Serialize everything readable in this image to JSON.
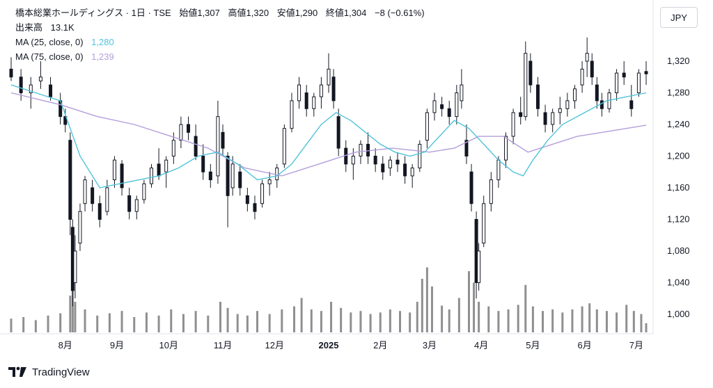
{
  "legend": {
    "symbol_line": "橋本総業ホールディングス · 1日 · TSE",
    "open": "始値1,307",
    "high": "高値1,320",
    "low": "安値1,290",
    "close": "終値1,304",
    "change": "−8 (−0.61%)",
    "volume_label": "出来高",
    "volume_value": "13.1K",
    "ma25_label": "MA (25, close, 0)",
    "ma25_value": "1,280",
    "ma75_label": "MA (75, close, 0)",
    "ma75_value": "1,239"
  },
  "currency": "JPY",
  "brand": "TradingView",
  "colors": {
    "candle": "#131722",
    "volume": "#8f8f8f",
    "ma25": "#4fc3d9",
    "ma75": "#b39ddb",
    "axis_text": "#131722"
  },
  "chart_data": {
    "type": "candlestick",
    "ylim": [
      980,
      1360
    ],
    "y_ticks": [
      "1,320",
      "1,280",
      "1,240",
      "1,200",
      "1,160",
      "1,120",
      "1,080",
      "1,040",
      "1,000"
    ],
    "y_tick_values": [
      1320,
      1280,
      1240,
      1200,
      1160,
      1120,
      1080,
      1040,
      1000
    ],
    "x_ticks": [
      "8月",
      "9月",
      "10月",
      "11月",
      "12月",
      "2025",
      "2月",
      "3月",
      "4月",
      "5月",
      "6月",
      "7月"
    ],
    "x_tick_positions": [
      22,
      43,
      64,
      86,
      107,
      129,
      150,
      170,
      191,
      212,
      233,
      254
    ],
    "n_sessions": 259,
    "candles": [
      [
        0,
        1310,
        1325,
        1295,
        1300
      ],
      [
        4,
        1300,
        1310,
        1270,
        1280
      ],
      [
        8,
        1280,
        1300,
        1260,
        1290
      ],
      [
        12,
        1295,
        1320,
        1285,
        1300
      ],
      [
        16,
        1290,
        1300,
        1270,
        1275
      ],
      [
        20,
        1270,
        1280,
        1240,
        1250
      ],
      [
        22,
        1250,
        1260,
        1230,
        1240
      ],
      [
        24,
        1220,
        1230,
        1100,
        1120
      ],
      [
        25,
        1110,
        1120,
        1010,
        1030
      ],
      [
        26,
        1040,
        1100,
        1020,
        1080
      ],
      [
        28,
        1090,
        1140,
        1080,
        1130
      ],
      [
        30,
        1140,
        1175,
        1130,
        1170
      ],
      [
        33,
        1160,
        1170,
        1130,
        1140
      ],
      [
        36,
        1140,
        1150,
        1110,
        1120
      ],
      [
        39,
        1130,
        1170,
        1125,
        1160
      ],
      [
        42,
        1170,
        1200,
        1160,
        1195
      ],
      [
        45,
        1190,
        1195,
        1150,
        1160
      ],
      [
        48,
        1150,
        1160,
        1120,
        1130
      ],
      [
        51,
        1130,
        1150,
        1120,
        1145
      ],
      [
        54,
        1145,
        1170,
        1140,
        1165
      ],
      [
        57,
        1165,
        1190,
        1160,
        1185
      ],
      [
        60,
        1190,
        1210,
        1170,
        1175
      ],
      [
        63,
        1180,
        1200,
        1160,
        1195
      ],
      [
        66,
        1200,
        1230,
        1190,
        1220
      ],
      [
        69,
        1220,
        1250,
        1210,
        1240
      ],
      [
        72,
        1240,
        1250,
        1220,
        1230
      ],
      [
        75,
        1225,
        1240,
        1195,
        1200
      ],
      [
        78,
        1200,
        1215,
        1170,
        1180
      ],
      [
        81,
        1180,
        1190,
        1160,
        1170
      ],
      [
        84,
        1175,
        1270,
        1165,
        1250
      ],
      [
        86,
        1230,
        1240,
        1200,
        1210
      ],
      [
        88,
        1200,
        1205,
        1110,
        1150
      ],
      [
        90,
        1160,
        1200,
        1150,
        1190
      ],
      [
        93,
        1180,
        1190,
        1150,
        1160
      ],
      [
        96,
        1150,
        1160,
        1130,
        1140
      ],
      [
        99,
        1140,
        1150,
        1120,
        1130
      ],
      [
        102,
        1140,
        1170,
        1135,
        1165
      ],
      [
        105,
        1165,
        1180,
        1150,
        1170
      ],
      [
        108,
        1170,
        1190,
        1160,
        1185
      ],
      [
        111,
        1190,
        1240,
        1185,
        1235
      ],
      [
        114,
        1235,
        1280,
        1230,
        1270
      ],
      [
        117,
        1270,
        1300,
        1260,
        1290
      ],
      [
        120,
        1280,
        1290,
        1250,
        1260
      ],
      [
        123,
        1260,
        1280,
        1250,
        1275
      ],
      [
        126,
        1275,
        1300,
        1260,
        1290
      ],
      [
        129,
        1290,
        1330,
        1280,
        1310
      ],
      [
        131,
        1300,
        1310,
        1260,
        1270
      ],
      [
        133,
        1250,
        1260,
        1200,
        1210
      ],
      [
        136,
        1210,
        1220,
        1180,
        1190
      ],
      [
        139,
        1190,
        1210,
        1170,
        1200
      ],
      [
        142,
        1200,
        1220,
        1190,
        1215
      ],
      [
        145,
        1215,
        1230,
        1190,
        1200
      ],
      [
        148,
        1200,
        1210,
        1180,
        1190
      ],
      [
        151,
        1190,
        1200,
        1170,
        1180
      ],
      [
        154,
        1185,
        1200,
        1175,
        1195
      ],
      [
        157,
        1195,
        1205,
        1180,
        1190
      ],
      [
        160,
        1190,
        1200,
        1165,
        1175
      ],
      [
        163,
        1175,
        1190,
        1160,
        1185
      ],
      [
        166,
        1185,
        1220,
        1180,
        1215
      ],
      [
        169,
        1220,
        1260,
        1210,
        1255
      ],
      [
        172,
        1255,
        1280,
        1245,
        1270
      ],
      [
        175,
        1265,
        1275,
        1250,
        1260
      ],
      [
        178,
        1260,
        1270,
        1240,
        1250
      ],
      [
        181,
        1250,
        1290,
        1240,
        1280
      ],
      [
        183,
        1270,
        1310,
        1260,
        1290
      ],
      [
        185,
        1220,
        1240,
        1190,
        1200
      ],
      [
        187,
        1180,
        1190,
        1130,
        1140
      ],
      [
        189,
        1120,
        1130,
        1020,
        1040
      ],
      [
        190,
        1040,
        1090,
        1030,
        1080
      ],
      [
        192,
        1090,
        1150,
        1085,
        1140
      ],
      [
        195,
        1140,
        1180,
        1130,
        1170
      ],
      [
        198,
        1170,
        1200,
        1160,
        1195
      ],
      [
        201,
        1195,
        1230,
        1185,
        1225
      ],
      [
        204,
        1225,
        1260,
        1215,
        1255
      ],
      [
        207,
        1255,
        1275,
        1240,
        1250
      ],
      [
        209,
        1250,
        1345,
        1245,
        1330
      ],
      [
        211,
        1320,
        1330,
        1280,
        1290
      ],
      [
        214,
        1290,
        1300,
        1250,
        1260
      ],
      [
        217,
        1255,
        1265,
        1230,
        1240
      ],
      [
        220,
        1240,
        1260,
        1230,
        1255
      ],
      [
        223,
        1255,
        1275,
        1240,
        1260
      ],
      [
        226,
        1260,
        1280,
        1250,
        1270
      ],
      [
        229,
        1270,
        1290,
        1260,
        1285
      ],
      [
        232,
        1290,
        1320,
        1280,
        1310
      ],
      [
        234,
        1320,
        1350,
        1300,
        1330
      ],
      [
        236,
        1320,
        1330,
        1290,
        1300
      ],
      [
        238,
        1290,
        1300,
        1260,
        1270
      ],
      [
        240,
        1270,
        1280,
        1250,
        1260
      ],
      [
        243,
        1260,
        1285,
        1255,
        1280
      ],
      [
        246,
        1280,
        1310,
        1270,
        1305
      ],
      [
        249,
        1305,
        1320,
        1290,
        1300
      ],
      [
        252,
        1270,
        1290,
        1250,
        1260
      ],
      [
        255,
        1280,
        1310,
        1275,
        1305
      ],
      [
        258,
        1307,
        1320,
        1290,
        1304
      ]
    ],
    "volume_max": 100,
    "volume_levels": [
      [
        0,
        18
      ],
      [
        5,
        20
      ],
      [
        10,
        16
      ],
      [
        15,
        22
      ],
      [
        20,
        25
      ],
      [
        24,
        48
      ],
      [
        25,
        70
      ],
      [
        26,
        40
      ],
      [
        30,
        30
      ],
      [
        35,
        22
      ],
      [
        40,
        25
      ],
      [
        45,
        28
      ],
      [
        50,
        20
      ],
      [
        55,
        26
      ],
      [
        60,
        22
      ],
      [
        65,
        30
      ],
      [
        70,
        24
      ],
      [
        75,
        28
      ],
      [
        80,
        22
      ],
      [
        85,
        40
      ],
      [
        88,
        32
      ],
      [
        92,
        24
      ],
      [
        96,
        22
      ],
      [
        100,
        28
      ],
      [
        105,
        24
      ],
      [
        110,
        30
      ],
      [
        115,
        34
      ],
      [
        118,
        45
      ],
      [
        122,
        30
      ],
      [
        126,
        28
      ],
      [
        130,
        40
      ],
      [
        134,
        32
      ],
      [
        138,
        26
      ],
      [
        142,
        28
      ],
      [
        146,
        24
      ],
      [
        150,
        26
      ],
      [
        154,
        30
      ],
      [
        158,
        28
      ],
      [
        162,
        26
      ],
      [
        165,
        40
      ],
      [
        167,
        70
      ],
      [
        169,
        85
      ],
      [
        171,
        60
      ],
      [
        175,
        35
      ],
      [
        178,
        30
      ],
      [
        182,
        45
      ],
      [
        186,
        80
      ],
      [
        188,
        65
      ],
      [
        190,
        40
      ],
      [
        194,
        34
      ],
      [
        198,
        28
      ],
      [
        202,
        30
      ],
      [
        206,
        36
      ],
      [
        209,
        62
      ],
      [
        212,
        34
      ],
      [
        216,
        28
      ],
      [
        220,
        30
      ],
      [
        224,
        26
      ],
      [
        228,
        30
      ],
      [
        232,
        34
      ],
      [
        235,
        38
      ],
      [
        238,
        30
      ],
      [
        242,
        28
      ],
      [
        246,
        26
      ],
      [
        250,
        36
      ],
      [
        253,
        28
      ],
      [
        256,
        24
      ],
      [
        258,
        12
      ]
    ],
    "ma25": [
      [
        0,
        1290
      ],
      [
        10,
        1280
      ],
      [
        20,
        1270
      ],
      [
        28,
        1200
      ],
      [
        36,
        1160
      ],
      [
        44,
        1165
      ],
      [
        52,
        1170
      ],
      [
        60,
        1175
      ],
      [
        68,
        1185
      ],
      [
        76,
        1200
      ],
      [
        84,
        1205
      ],
      [
        92,
        1190
      ],
      [
        100,
        1170
      ],
      [
        108,
        1175
      ],
      [
        114,
        1190
      ],
      [
        120,
        1215
      ],
      [
        126,
        1240
      ],
      [
        132,
        1255
      ],
      [
        138,
        1245
      ],
      [
        144,
        1230
      ],
      [
        150,
        1215
      ],
      [
        156,
        1205
      ],
      [
        162,
        1200
      ],
      [
        168,
        1205
      ],
      [
        174,
        1225
      ],
      [
        180,
        1245
      ],
      [
        186,
        1235
      ],
      [
        192,
        1215
      ],
      [
        198,
        1195
      ],
      [
        204,
        1180
      ],
      [
        208,
        1175
      ],
      [
        212,
        1195
      ],
      [
        218,
        1220
      ],
      [
        224,
        1240
      ],
      [
        230,
        1250
      ],
      [
        236,
        1260
      ],
      [
        242,
        1270
      ],
      [
        250,
        1275
      ],
      [
        258,
        1280
      ]
    ],
    "ma75": [
      [
        0,
        1280
      ],
      [
        20,
        1265
      ],
      [
        35,
        1250
      ],
      [
        50,
        1240
      ],
      [
        65,
        1225
      ],
      [
        80,
        1210
      ],
      [
        95,
        1185
      ],
      [
        110,
        1175
      ],
      [
        125,
        1190
      ],
      [
        140,
        1205
      ],
      [
        155,
        1210
      ],
      [
        170,
        1205
      ],
      [
        180,
        1210
      ],
      [
        190,
        1225
      ],
      [
        200,
        1225
      ],
      [
        210,
        1205
      ],
      [
        220,
        1215
      ],
      [
        230,
        1225
      ],
      [
        240,
        1230
      ],
      [
        250,
        1235
      ],
      [
        258,
        1239
      ]
    ]
  }
}
